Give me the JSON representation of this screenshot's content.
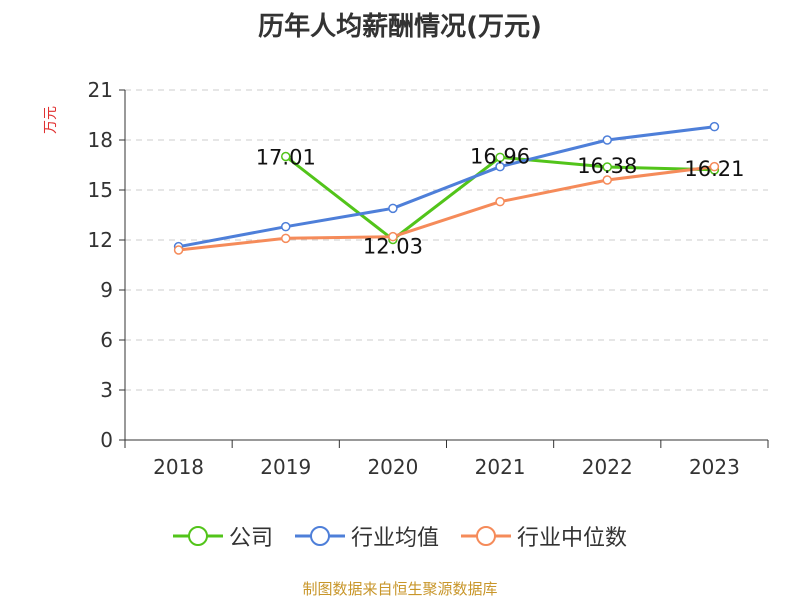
{
  "chart_data": {
    "type": "line",
    "title": "历年人均薪酬情况(万元)",
    "ylabel": "万元",
    "xlabel": "",
    "categories": [
      "2018",
      "2019",
      "2020",
      "2021",
      "2022",
      "2023"
    ],
    "ylim": [
      0,
      21
    ],
    "yticks": [
      0,
      3,
      6,
      9,
      12,
      15,
      18,
      21
    ],
    "grid": true,
    "legend_position": "bottom",
    "series": [
      {
        "name": "公司",
        "color": "#52c41a",
        "values": [
          null,
          17.01,
          12.03,
          16.96,
          16.38,
          16.21
        ],
        "labels": [
          null,
          "17.01",
          "12.03",
          "16.96",
          "16.38",
          "16.21"
        ]
      },
      {
        "name": "行业均值",
        "color": "#4e7fd9",
        "values": [
          11.6,
          12.8,
          13.9,
          16.4,
          18.0,
          18.8
        ],
        "labels": []
      },
      {
        "name": "行业中位数",
        "color": "#f58b5a",
        "values": [
          11.4,
          12.1,
          12.2,
          14.3,
          15.6,
          16.4
        ],
        "labels": []
      }
    ]
  },
  "footer": "制图数据来自恒生聚源数据库"
}
